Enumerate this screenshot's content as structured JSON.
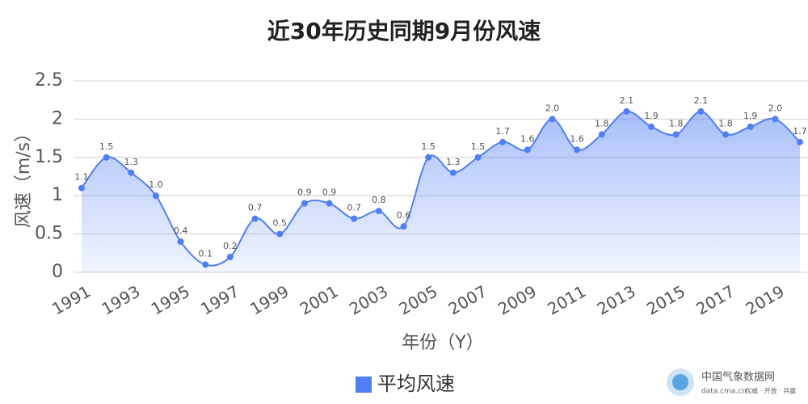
{
  "chart_data": {
    "type": "area-line",
    "title": "近30年历史同期9月份风速",
    "x_label": "年份（Y）",
    "y_label": "风速（m/s）",
    "categories": [
      "1991",
      null,
      "1993",
      null,
      "1995",
      null,
      "1997",
      null,
      "1999",
      null,
      "2001",
      null,
      "2003",
      null,
      "2005",
      null,
      "2007",
      null,
      "2009",
      null,
      "2011",
      null,
      "2013",
      null,
      "2015",
      null,
      "2017",
      null,
      "2019",
      null
    ],
    "series": [
      {
        "name": "平均风速",
        "color": "#4f7ff5",
        "values": [
          1.1,
          1.5,
          1.3,
          1.0,
          0.4,
          0.1,
          0.2,
          0.7,
          0.5,
          0.9,
          0.9,
          0.7,
          0.8,
          0.6,
          1.5,
          1.3,
          1.5,
          1.7,
          1.6,
          2.0,
          1.6,
          1.8,
          2.1,
          1.9,
          1.8,
          2.1,
          1.8,
          1.9,
          2.0,
          1.7
        ],
        "value_labels": [
          "1.1",
          "1.5",
          "1.3",
          "1.0",
          "0.4",
          "0.1",
          "0.2",
          "0.7",
          "0.5",
          "0.9",
          "0.9",
          "0.7",
          "0.8",
          "0.6",
          "1.5",
          "1.3",
          "1.5",
          "1.7",
          "1.6",
          "2.0",
          "1.6",
          "1.8",
          "2.1",
          "1.9",
          "1.8",
          "2.1",
          "1.8",
          "1.9",
          "2.0",
          "1.7"
        ]
      }
    ],
    "ylim": [
      0,
      2.5
    ],
    "yticks": [
      0,
      0.5,
      1,
      1.5,
      2,
      2.5
    ],
    "grid": true,
    "legend": "bottom"
  },
  "source": {
    "name": "中国气象数据网",
    "url": "data.cma.cn",
    "slogan": "权威 · 开放 · 共赢"
  }
}
